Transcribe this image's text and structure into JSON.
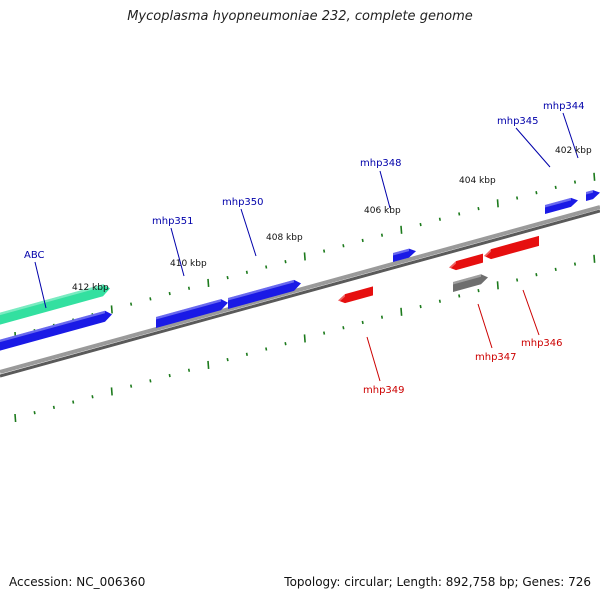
{
  "title": "Mycoplasma hyopneumoniae 232, complete genome",
  "footer": {
    "accession": "Accession: NC_006360",
    "summary": "Topology: circular; Length: 892,758 bp; Genes: 726"
  },
  "colors": {
    "forward_gene": "#1a1ae6",
    "reverse_gene": "#e60f0f",
    "rna_gene": "#33e0a0",
    "other_gene": "#6e6e6e",
    "backbone": "#8a8a8a",
    "tick": "#1c7a1c",
    "forward_label": "#0000aa",
    "reverse_label": "#cc0000",
    "kbp_label": "#111111"
  },
  "kbp_labels": [
    "412 kbp",
    "410 kbp",
    "408 kbp",
    "406 kbp",
    "404 kbp",
    "402 kbp"
  ],
  "gene_labels": {
    "forward": [
      "ABC",
      "mhp351",
      "mhp350",
      "mhp348",
      "mhp345",
      "mhp344"
    ],
    "reverse": [
      "mhp349",
      "mhp347",
      "mhp346"
    ]
  }
}
